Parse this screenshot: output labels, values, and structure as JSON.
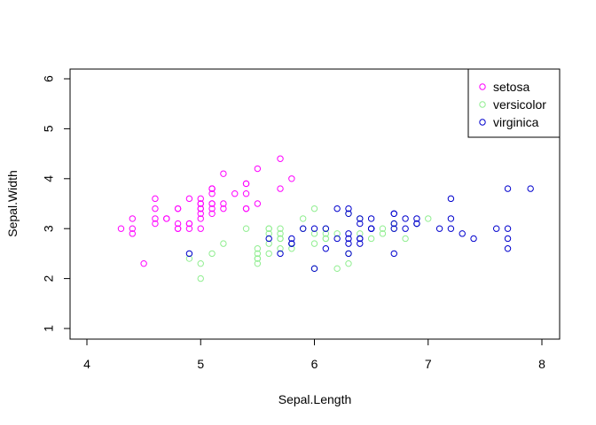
{
  "chart_data": {
    "type": "scatter",
    "xlabel": "Sepal.Length",
    "ylabel": "Sepal.Width",
    "xlim": [
      4,
      8
    ],
    "ylim": [
      1,
      6
    ],
    "xticks": [
      "4",
      "5",
      "6",
      "7",
      "8"
    ],
    "yticks": [
      "1",
      "2",
      "3",
      "4",
      "5",
      "6"
    ],
    "grid": false,
    "legend_position": "top-right",
    "series": [
      {
        "name": "setosa",
        "color": "#ff00ff",
        "x": [
          5.1,
          4.9,
          4.7,
          4.6,
          5.0,
          5.4,
          4.6,
          5.0,
          4.4,
          4.9,
          5.4,
          4.8,
          4.8,
          4.3,
          5.8,
          5.7,
          5.4,
          5.1,
          5.7,
          5.1,
          5.4,
          5.1,
          4.6,
          5.1,
          4.8,
          5.0,
          5.0,
          5.2,
          5.2,
          4.7,
          4.8,
          5.4,
          5.2,
          5.5,
          4.9,
          5.0,
          5.5,
          4.9,
          4.4,
          5.1,
          5.0,
          4.5,
          4.4,
          5.0,
          5.1,
          4.8,
          5.1,
          4.6,
          5.3,
          5.0
        ],
        "y": [
          3.5,
          3.0,
          3.2,
          3.1,
          3.6,
          3.9,
          3.4,
          3.4,
          2.9,
          3.1,
          3.7,
          3.4,
          3.0,
          3.0,
          4.0,
          4.4,
          3.9,
          3.5,
          3.8,
          3.8,
          3.4,
          3.7,
          3.6,
          3.3,
          3.4,
          3.0,
          3.4,
          3.5,
          3.4,
          3.2,
          3.1,
          3.4,
          4.1,
          4.2,
          3.1,
          3.2,
          3.5,
          3.6,
          3.0,
          3.4,
          3.5,
          2.3,
          3.2,
          3.5,
          3.8,
          3.0,
          3.8,
          3.2,
          3.7,
          3.3
        ]
      },
      {
        "name": "versicolor",
        "color": "#90ee90",
        "x": [
          7.0,
          6.4,
          6.9,
          5.5,
          6.5,
          5.7,
          6.3,
          4.9,
          6.6,
          5.2,
          5.0,
          5.9,
          6.0,
          6.1,
          5.6,
          6.7,
          5.6,
          5.8,
          6.2,
          5.6,
          5.9,
          6.1,
          6.3,
          6.1,
          6.4,
          6.6,
          6.8,
          6.7,
          6.0,
          5.7,
          5.5,
          5.5,
          5.8,
          6.0,
          5.4,
          6.0,
          6.7,
          6.3,
          5.6,
          5.5,
          5.5,
          6.1,
          5.8,
          5.0,
          5.6,
          5.7,
          5.7,
          6.2,
          5.1,
          5.7
        ],
        "y": [
          3.2,
          3.2,
          3.1,
          2.3,
          2.8,
          2.8,
          3.3,
          2.4,
          2.9,
          2.7,
          2.0,
          3.0,
          2.2,
          2.9,
          2.9,
          3.1,
          3.0,
          2.7,
          2.2,
          2.5,
          3.2,
          2.8,
          2.5,
          2.8,
          2.9,
          3.0,
          2.8,
          3.0,
          2.9,
          2.6,
          2.4,
          2.4,
          2.7,
          2.7,
          3.0,
          3.4,
          3.1,
          2.3,
          3.0,
          2.5,
          2.6,
          3.0,
          2.6,
          2.3,
          2.7,
          3.0,
          2.9,
          2.9,
          2.5,
          2.8
        ]
      },
      {
        "name": "virginica",
        "color": "#0000cd",
        "x": [
          6.3,
          5.8,
          7.1,
          6.3,
          6.5,
          7.6,
          4.9,
          7.3,
          6.7,
          7.2,
          6.5,
          6.4,
          6.8,
          5.7,
          5.8,
          6.4,
          6.5,
          7.7,
          7.7,
          6.0,
          6.9,
          5.6,
          7.7,
          6.3,
          6.7,
          7.2,
          6.2,
          6.1,
          6.4,
          7.2,
          7.4,
          7.9,
          6.4,
          6.3,
          6.1,
          7.7,
          6.3,
          6.4,
          6.0,
          6.9,
          6.7,
          6.9,
          5.8,
          6.8,
          6.7,
          6.7,
          6.3,
          6.5,
          6.2,
          5.9
        ],
        "y": [
          3.3,
          2.7,
          3.0,
          2.9,
          3.0,
          3.0,
          2.5,
          2.9,
          2.5,
          3.6,
          3.2,
          2.7,
          3.0,
          2.5,
          2.8,
          3.2,
          3.0,
          3.8,
          2.6,
          2.2,
          3.2,
          2.8,
          2.8,
          2.7,
          3.3,
          3.2,
          2.8,
          3.0,
          2.8,
          3.0,
          2.8,
          3.8,
          2.8,
          2.8,
          2.6,
          3.0,
          3.4,
          3.1,
          3.0,
          3.1,
          3.1,
          3.1,
          2.7,
          3.2,
          3.3,
          3.0,
          2.5,
          3.0,
          3.4,
          3.0
        ]
      }
    ]
  }
}
